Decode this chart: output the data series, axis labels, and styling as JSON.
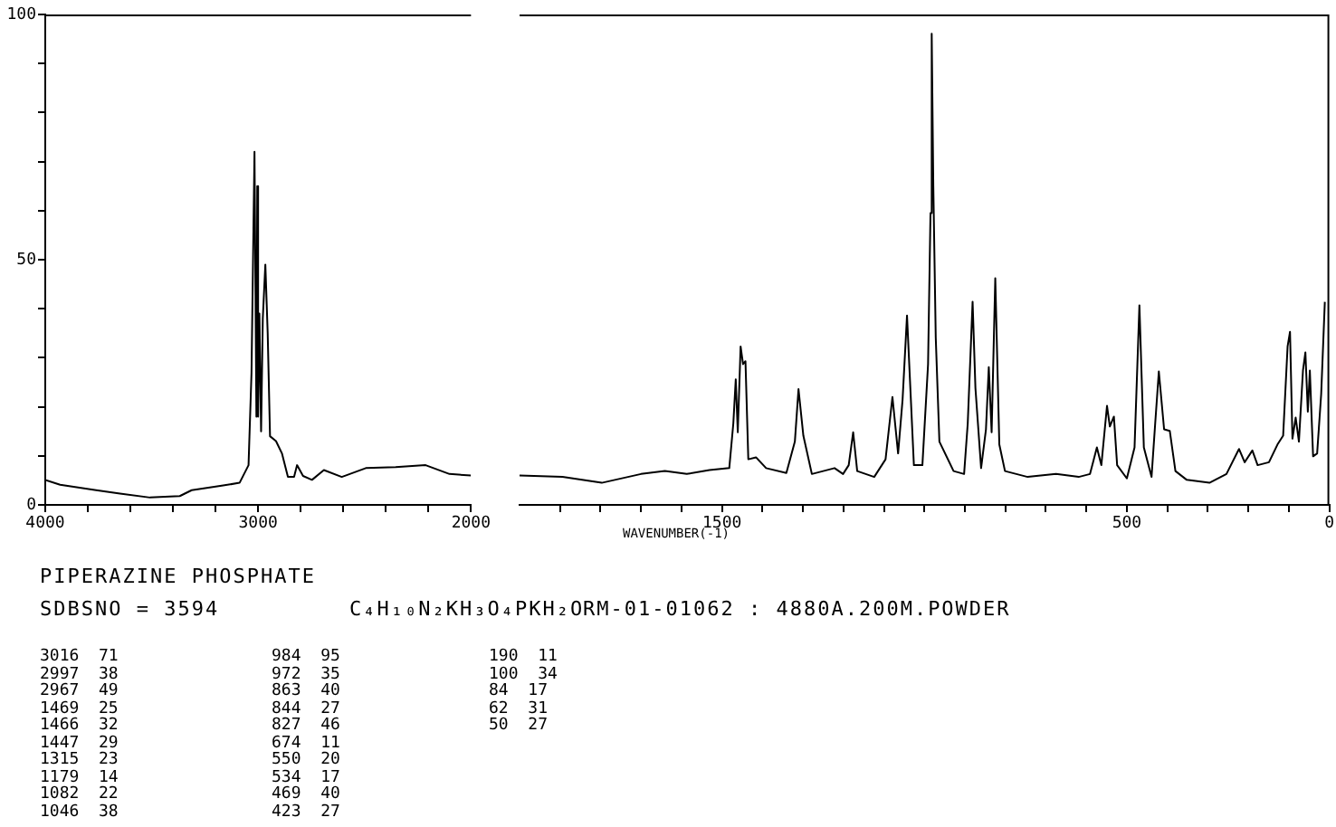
{
  "chart_data": [
    {
      "type": "line",
      "title": "PIPERAZINE PHOSPHATE",
      "xlim": [
        4000,
        2000
      ],
      "xticks": [
        4000,
        {
          "value": 3800,
          "label": null
        },
        {
          "value": 3600,
          "label": null
        },
        {
          "value": 3400,
          "label": null
        },
        {
          "value": 3200,
          "label": null
        },
        3000,
        {
          "value": 2800,
          "label": null
        },
        {
          "value": 2600,
          "label": null
        },
        {
          "value": 2400,
          "label": null
        },
        {
          "value": 2200,
          "label": null
        },
        2000
      ],
      "ylim": [
        0,
        100
      ],
      "yticks": [
        0,
        {
          "value": 10,
          "label": null
        },
        {
          "value": 20,
          "label": null
        },
        {
          "value": 30,
          "label": null
        },
        {
          "value": 40,
          "label": null
        },
        50,
        {
          "value": 60,
          "label": null
        },
        {
          "value": 70,
          "label": null
        },
        {
          "value": 80,
          "label": null
        },
        {
          "value": 90,
          "label": null
        },
        100
      ],
      "series": [
        {
          "color": "#000000",
          "x": [
            4000,
            3930,
            3761,
            3649,
            3508,
            3368,
            3312,
            3171,
            3087,
            3045,
            3031,
            3017,
            3008,
            3004,
            3000,
            2994,
            2986,
            2978,
            2966,
            2955,
            2944,
            2916,
            2888,
            2860,
            2831,
            2817,
            2789,
            2747,
            2691,
            2607,
            2494,
            2354,
            2213,
            2101,
            2000
          ],
          "values": [
            5.1,
            4.1,
            3.0,
            2.3,
            1.5,
            1.8,
            3.0,
            3.9,
            4.5,
            8.1,
            27,
            72,
            18,
            65,
            18,
            39,
            15,
            38,
            49,
            35,
            14,
            13,
            10.5,
            5.7,
            5.7,
            8.1,
            5.9,
            5.1,
            7.1,
            5.7,
            7.5,
            7.7,
            8.1,
            6.3,
            6.0
          ]
        }
      ],
      "annotations": [
        "SDBSNO = 3594",
        "C₄H₁₀N₂KH₃O₄PKH₂O",
        "RM-01-01062 : 4880A.200M.POWDER",
        "3016  71",
        "2997  38",
        "2967  49",
        "1469  25",
        "1466  32",
        "1447  29",
        "1315  23",
        "1179  14",
        "1082  22",
        "1046  38",
        "984  95",
        "972  35",
        "863  40",
        "844  27",
        "827  46",
        "674  11",
        "550  20",
        "534  17",
        "469  40",
        "423  27",
        "190  11",
        "100  34",
        "84  17",
        "62  31",
        "50  27"
      ]
    },
    {
      "type": "line",
      "xlabel": "WAVENUMBER(-1)",
      "tick_labels": "x",
      "xlim": [
        2000,
        0
      ],
      "xticks": [
        {
          "value": 1900,
          "label": null
        },
        {
          "value": 1800,
          "label": null
        },
        {
          "value": 1700,
          "label": null
        },
        {
          "value": 1600,
          "label": null
        },
        1500,
        {
          "value": 1400,
          "label": null
        },
        {
          "value": 1300,
          "label": null
        },
        {
          "value": 1200,
          "label": null
        },
        {
          "value": 1100,
          "label": null
        },
        {
          "value": 1000,
          "label": null
        },
        {
          "value": 900,
          "label": null
        },
        {
          "value": 800,
          "label": null
        },
        {
          "value": 700,
          "label": null
        },
        {
          "value": 600,
          "label": null
        },
        500,
        {
          "value": 400,
          "label": null
        },
        {
          "value": 300,
          "label": null
        },
        {
          "value": 200,
          "label": null
        },
        {
          "value": 100,
          "label": null
        },
        0
      ],
      "ylim": [
        0,
        100
      ],
      "series": [
        {
          "color": "#000000",
          "x": [
            2000,
            1894,
            1797,
            1700,
            1641,
            1587,
            1531,
            1482,
            1472,
            1466,
            1461,
            1454,
            1448,
            1442,
            1435,
            1416,
            1391,
            1341,
            1320,
            1311,
            1299,
            1278,
            1222,
            1201,
            1187,
            1176,
            1166,
            1124,
            1096,
            1079,
            1065,
            1054,
            1043,
            1026,
            1005,
            991,
            985,
            982,
            978,
            972,
            963,
            928,
            902,
            893,
            881,
            874,
            860,
            848,
            841,
            834,
            825,
            815,
            801,
            745,
            675,
            619,
            591,
            574,
            563,
            549,
            542,
            532,
            524,
            500,
            481,
            469,
            458,
            439,
            430,
            421,
            408,
            394,
            380,
            352,
            296,
            254,
            223,
            209,
            190,
            177,
            149,
            128,
            114,
            103,
            97,
            91,
            83,
            75,
            65,
            59,
            53,
            48,
            40,
            30,
            20,
            11
          ],
          "values": [
            6.0,
            5.7,
            4.5,
            6.3,
            6.9,
            6.3,
            7.1,
            7.5,
            16.6,
            25.6,
            14.8,
            32.3,
            28.7,
            29.3,
            9.3,
            9.7,
            7.5,
            6.5,
            12.9,
            23.6,
            14.1,
            6.3,
            7.5,
            6.3,
            8.1,
            14.8,
            6.9,
            5.7,
            9.3,
            22.0,
            10.5,
            21.4,
            38.6,
            8.1,
            8.1,
            28.7,
            59.5,
            96.1,
            64.9,
            34.1,
            12.9,
            6.9,
            6.3,
            16.6,
            41.4,
            23.8,
            7.5,
            15.4,
            28.1,
            14.8,
            46.2,
            12.3,
            6.9,
            5.7,
            6.3,
            5.7,
            6.3,
            11.7,
            8.1,
            20.2,
            16.0,
            18.0,
            8.1,
            5.4,
            11.7,
            40.7,
            11.7,
            5.7,
            16.6,
            27.2,
            15.4,
            15.1,
            6.9,
            5.1,
            4.5,
            6.3,
            11.4,
            8.7,
            11.1,
            8.1,
            8.7,
            12.3,
            14.1,
            32.3,
            35.3,
            13.5,
            17.8,
            12.9,
            27.4,
            31.1,
            19.0,
            27.4,
            9.9,
            10.5,
            22.6,
            41.4
          ]
        }
      ]
    }
  ]
}
